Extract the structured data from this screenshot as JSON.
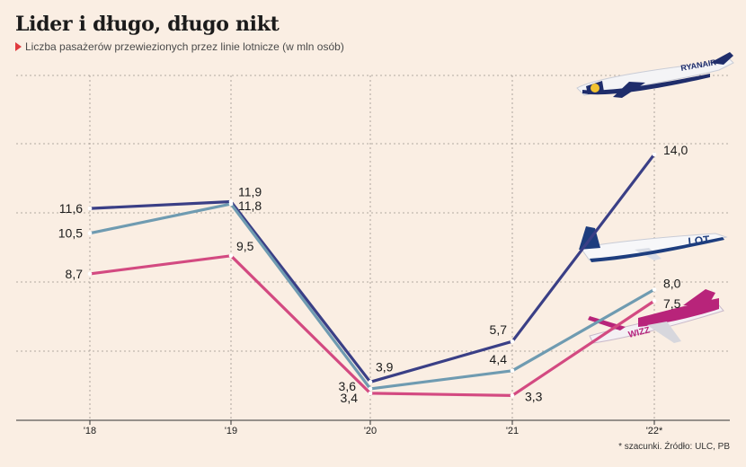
{
  "title": "Lider i długo, długo nikt",
  "subtitle": "Liczba pasażerów przewiezionych przez linie lotnicze (w mln osób)",
  "footnote": "* szacunki. Źródło: ULC, PB",
  "airplanes": {
    "ryanair": "RYANAIR",
    "lot": "LOT",
    "wizz": "WIZZ"
  },
  "chart_data": {
    "type": "line",
    "categories": [
      "'18",
      "'19",
      "'20",
      "'21",
      "'22*"
    ],
    "ylim": [
      2.2,
      17.5
    ],
    "grid": true,
    "series": [
      {
        "key": "ryanair",
        "color": "#3a3f86",
        "values": [
          11.6,
          11.9,
          3.9,
          5.7,
          14.0
        ],
        "labels": [
          "11,6",
          "11,9",
          "3,9",
          "5,7",
          "14,0"
        ]
      },
      {
        "key": "lot",
        "color": "#6f9bb1",
        "values": [
          10.5,
          11.8,
          3.6,
          4.4,
          8.0
        ],
        "labels": [
          "10,5",
          "11,8",
          "3,6",
          "4,4",
          "8,0"
        ]
      },
      {
        "key": "wizz",
        "color": "#d34a81",
        "values": [
          8.7,
          9.5,
          3.4,
          3.3,
          7.5
        ],
        "labels": [
          "8,7",
          "9,5",
          "3,4",
          "3,3",
          "7,5"
        ]
      }
    ]
  }
}
